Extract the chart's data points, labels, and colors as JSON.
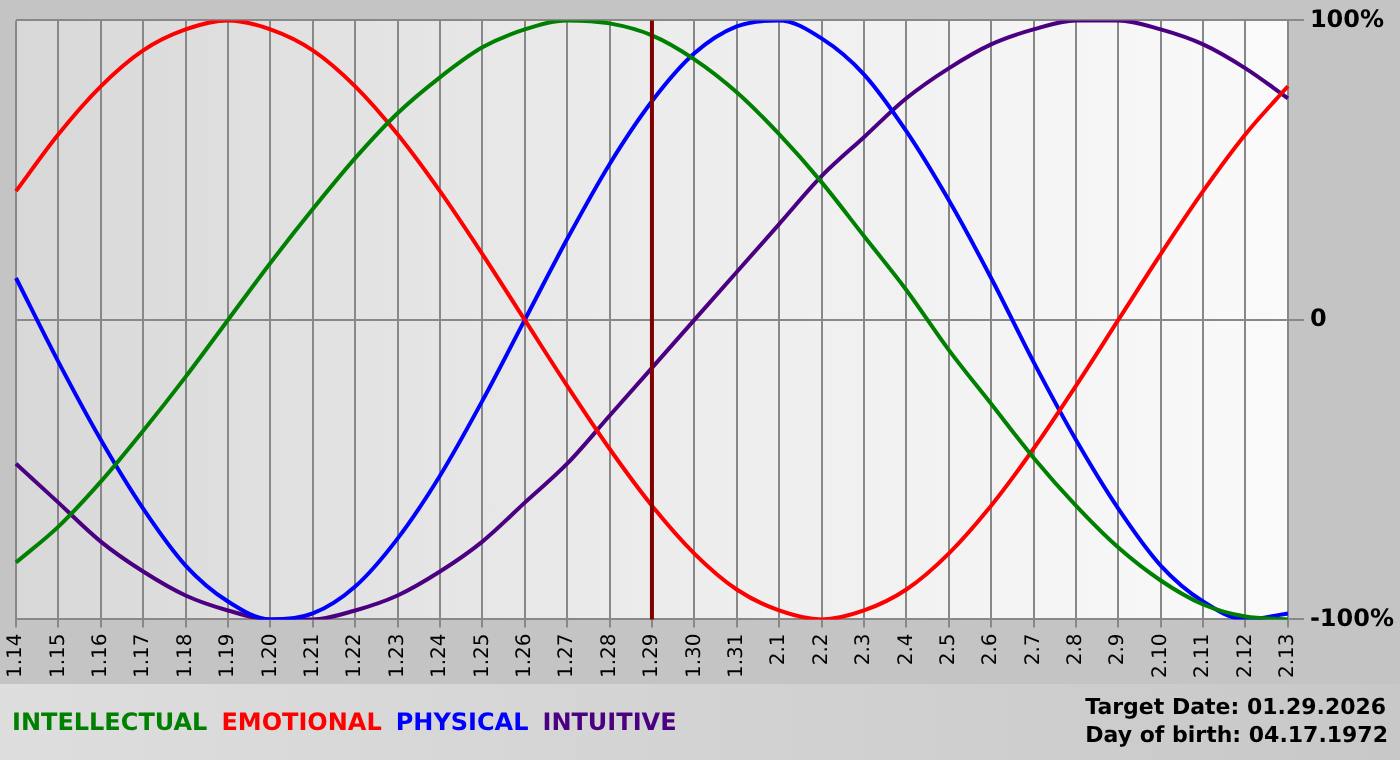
{
  "chart_data": {
    "type": "line",
    "categories": [
      "1.14",
      "1.15",
      "1.16",
      "1.17",
      "1.18",
      "1.19",
      "1.20",
      "1.21",
      "1.22",
      "1.23",
      "1.24",
      "1.25",
      "1.26",
      "1.27",
      "1.28",
      "1.29",
      "1.30",
      "1.31",
      "2.1",
      "2.2",
      "2.3",
      "2.4",
      "2.5",
      "2.6",
      "2.7",
      "2.8",
      "2.9",
      "2.10",
      "2.11",
      "2.12",
      "2.13"
    ],
    "series": [
      {
        "name": "INTELLECTUAL",
        "color": "#008000",
        "values": [
          -81,
          -69,
          -54,
          -37,
          -19,
          0,
          19,
          37,
          54,
          69,
          81,
          91,
          97,
          100,
          99,
          95,
          87,
          76,
          62,
          46,
          28,
          10,
          -10,
          -28,
          -46,
          -62,
          -76,
          -87,
          -95,
          -99,
          -100
        ]
      },
      {
        "name": "EMOTIONAL",
        "color": "#ff0000",
        "values": [
          43,
          62,
          78,
          90,
          97,
          100,
          97,
          90,
          78,
          62,
          43,
          22,
          0,
          -22,
          -43,
          -62,
          -78,
          -90,
          -97,
          -100,
          -97,
          -90,
          -78,
          -62,
          -43,
          -22,
          0,
          22,
          43,
          62,
          78
        ]
      },
      {
        "name": "PHYSICAL",
        "color": "#0000ff",
        "values": [
          14,
          -14,
          -40,
          -63,
          -82,
          -94,
          -100,
          -98,
          -89,
          -73,
          -52,
          -27,
          0,
          27,
          52,
          73,
          89,
          98,
          100,
          94,
          82,
          63,
          40,
          14,
          -14,
          -40,
          -63,
          -82,
          -94,
          -100,
          -98
        ]
      },
      {
        "name": "INTUITIVE",
        "color": "#4b0082",
        "values": [
          -48,
          -61,
          -74,
          -84,
          -92,
          -97,
          -100,
          -100,
          -97,
          -92,
          -84,
          -74,
          -61,
          -48,
          -32,
          -16,
          0,
          16,
          32,
          48,
          61,
          74,
          84,
          92,
          97,
          100,
          100,
          97,
          92,
          84,
          74
        ]
      }
    ],
    "ylim": [
      -100,
      100
    ],
    "yticks": [
      {
        "value": -100,
        "label": "-100%"
      },
      0,
      {
        "value": 100,
        "label": "100%"
      }
    ],
    "ref_lines": [
      {
        "axis": "x",
        "value": "1.29",
        "color": "#800000"
      }
    ],
    "annotations": [
      "Target Date: 01.29.2026",
      "Day of birth: 04.17.1972"
    ],
    "grid": true,
    "legend": "bottom left",
    "marker": "none",
    "line_style": "solid"
  }
}
